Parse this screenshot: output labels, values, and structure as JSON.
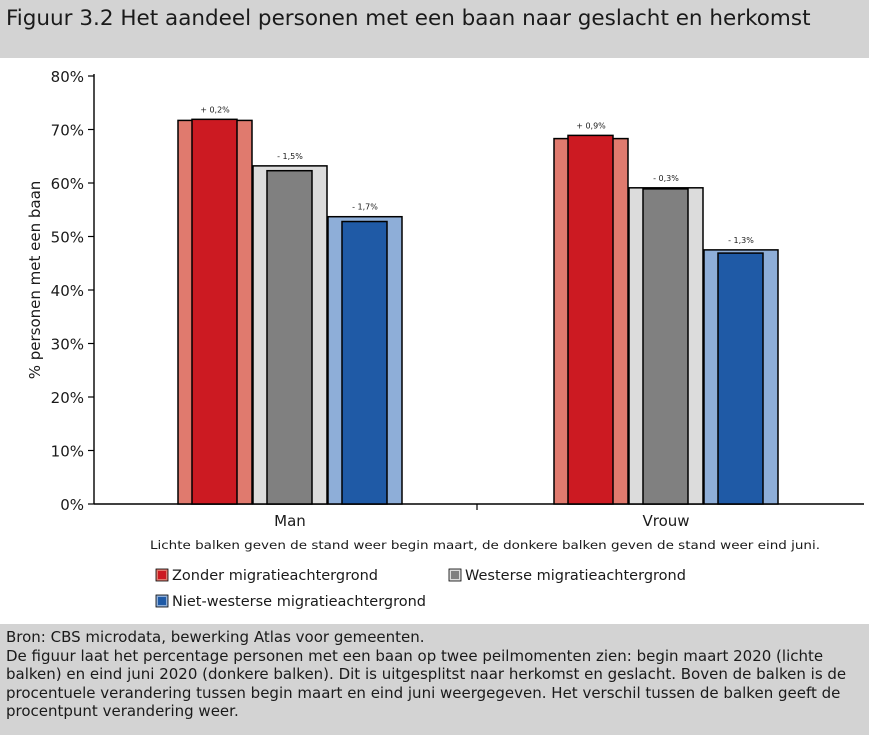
{
  "figure": {
    "title": "Figuur 3.2   Het aandeel personen met een baan naar geslacht en herkomst",
    "source": "Bron: CBS microdata, bewerking Atlas voor gemeenten.",
    "description": "De figuur laat het percentage personen met een baan op twee peilmomenten zien: begin maart 2020 (lichte balken) en eind juni 2020 (donkere balken). Dit is uitgesplitst naar herkomst en geslacht. Boven de balken is de procentuele verandering tussen begin maart en eind juni weergegeven. Het verschil tussen de balken geeft de procentpunt verandering weer."
  },
  "chart_data": {
    "type": "bar",
    "categories": [
      "Man",
      "Vrouw"
    ],
    "ylabel": "% personen met een baan",
    "ylim": [
      0,
      80
    ],
    "yticks": [
      "0%",
      "10%",
      "20%",
      "30%",
      "40%",
      "50%",
      "60%",
      "70%",
      "80%"
    ],
    "note": "Lichte balken geven de stand weer begin maart, de donkere balken geven de stand weer eind juni.",
    "legend_position": "bottom",
    "series": [
      {
        "name": "Zonder migratieachtergrond",
        "light_color": "#e07a6e",
        "dark_color": "#cc1a22",
        "begin_maart": [
          71.7,
          68.3
        ],
        "eind_juni": [
          71.9,
          68.9
        ],
        "change_labels": [
          "+ 0,2%",
          "+ 0,9%"
        ]
      },
      {
        "name": "Westerse migratieachtergrond",
        "light_color": "#dcdcdc",
        "dark_color": "#808080",
        "begin_maart": [
          63.2,
          59.1
        ],
        "eind_juni": [
          62.3,
          58.9
        ],
        "change_labels": [
          "- 1,5%",
          "- 0,3%"
        ]
      },
      {
        "name": "Niet-westerse migratieachtergrond",
        "light_color": "#8eaed8",
        "dark_color": "#1f5aa6",
        "begin_maart": [
          53.7,
          47.5
        ],
        "eind_juni": [
          52.8,
          46.9
        ],
        "change_labels": [
          "- 1,7%",
          "- 1,3%"
        ]
      }
    ]
  }
}
